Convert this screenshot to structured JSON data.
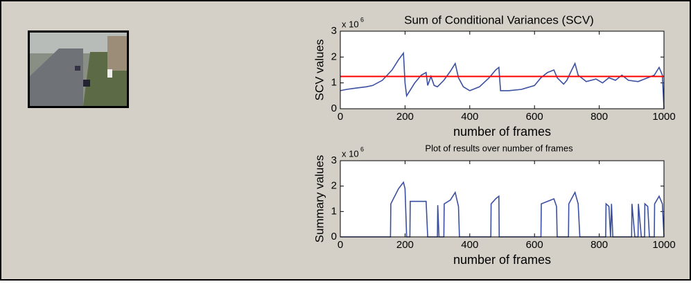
{
  "chart_data": [
    {
      "type": "line",
      "title": "Sum of Conditional Variances (SCV)",
      "y_scale_base": "x 10",
      "y_scale_exponent": "6",
      "xlabel": "number of frames",
      "ylabel": "SCV values",
      "color": "#3a4fa0",
      "x": [
        0,
        20,
        50,
        80,
        100,
        130,
        160,
        180,
        195,
        200,
        205,
        210,
        230,
        250,
        265,
        270,
        280,
        290,
        300,
        320,
        340,
        355,
        365,
        380,
        400,
        430,
        460,
        480,
        490,
        495,
        520,
        560,
        600,
        620,
        640,
        660,
        670,
        690,
        700,
        715,
        725,
        735,
        760,
        790,
        810,
        830,
        850,
        870,
        890,
        920,
        950,
        970,
        985,
        995,
        1000
      ],
      "values": [
        0.7,
        0.75,
        0.8,
        0.85,
        0.9,
        1.1,
        1.5,
        1.9,
        2.15,
        1.0,
        0.5,
        0.6,
        1.0,
        1.3,
        1.4,
        0.9,
        1.25,
        0.9,
        0.85,
        1.1,
        1.45,
        1.75,
        1.2,
        0.85,
        0.7,
        0.85,
        1.2,
        1.5,
        1.6,
        0.7,
        0.7,
        0.75,
        0.9,
        1.2,
        1.4,
        1.5,
        1.2,
        0.95,
        1.1,
        1.5,
        1.75,
        1.3,
        1.05,
        1.15,
        1.0,
        1.2,
        1.1,
        1.3,
        1.1,
        1.05,
        1.2,
        1.3,
        1.6,
        1.3,
        0
      ],
      "hline": {
        "value": 1.25,
        "color": "#ff0000"
      },
      "xlim": [
        0,
        1000
      ],
      "xticks": [
        0,
        200,
        400,
        600,
        800,
        1000
      ],
      "ylim": [
        0,
        3
      ],
      "yticks": [
        0,
        1,
        2,
        3
      ]
    },
    {
      "type": "line",
      "title": "Plot of results over number of frames",
      "y_scale_base": "x 10",
      "y_scale_exponent": "6",
      "xlabel": "number of frames",
      "ylabel": "Summary values",
      "color": "#3a4fa0",
      "x": [
        0,
        155,
        156,
        180,
        195,
        200,
        205,
        215,
        216,
        265,
        270,
        300,
        301,
        305,
        320,
        321,
        340,
        355,
        365,
        368,
        465,
        466,
        480,
        490,
        491,
        620,
        621,
        640,
        660,
        668,
        670,
        705,
        706,
        725,
        735,
        740,
        820,
        821,
        830,
        835,
        838,
        842,
        900,
        901,
        910,
        920,
        921,
        930,
        940,
        941,
        950,
        955,
        970,
        971,
        985,
        995,
        1000
      ],
      "values": [
        0,
        0,
        1.3,
        1.9,
        2.15,
        1.9,
        0,
        0,
        1.4,
        1.4,
        0,
        0,
        1.25,
        0,
        0,
        1.3,
        1.45,
        1.75,
        1.2,
        0,
        0,
        1.3,
        1.5,
        1.6,
        0,
        0,
        1.3,
        1.4,
        1.5,
        1.2,
        0,
        0,
        1.3,
        1.75,
        1.3,
        0,
        0,
        1.3,
        1.2,
        0,
        1.3,
        0,
        0,
        1.3,
        0,
        0,
        1.3,
        0,
        0,
        1.3,
        1.2,
        0,
        0,
        1.3,
        1.6,
        1.3,
        0
      ],
      "xlim": [
        0,
        1000
      ],
      "xticks": [
        0,
        200,
        400,
        600,
        800,
        1000
      ],
      "ylim": [
        0,
        3
      ],
      "yticks": [
        0,
        1,
        2,
        3
      ]
    }
  ]
}
